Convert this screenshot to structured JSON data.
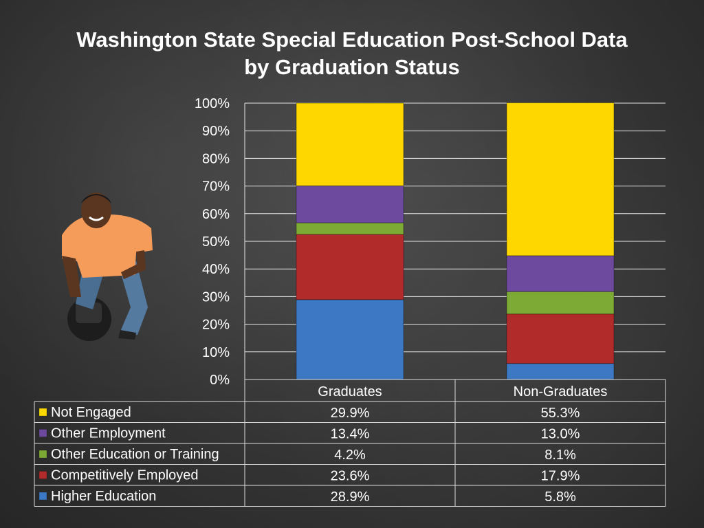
{
  "colors": {
    "Not Engaged": "#FFD700",
    "Other Employment": "#6E4A9E",
    "Other Education or Training": "#7DAA35",
    "Competitively Employed": "#B22B2B",
    "Higher Education": "#3C78C3",
    "gridline": "#e6e6e6",
    "table_border": "#dddddd"
  },
  "chart_data": {
    "type": "bar",
    "stacked": true,
    "title": "Washington State Special Education Post-School Data by Graduation Status",
    "title_lines": [
      "Washington State Special Education Post-School Data",
      "by Graduation Status"
    ],
    "categories": [
      "Graduates",
      "Non-Graduates"
    ],
    "series": [
      {
        "name": "Higher Education",
        "values": [
          28.9,
          5.8
        ],
        "labels": [
          "28.9%",
          "5.8%"
        ]
      },
      {
        "name": "Competitively Employed",
        "values": [
          23.6,
          17.9
        ],
        "labels": [
          "23.6%",
          "17.9%"
        ]
      },
      {
        "name": "Other Education or Training",
        "values": [
          4.2,
          8.1
        ],
        "labels": [
          "4.2%",
          "8.1%"
        ]
      },
      {
        "name": "Other Employment",
        "values": [
          13.4,
          13.0
        ],
        "labels": [
          "13.4%",
          "13.0%"
        ]
      },
      {
        "name": "Not Engaged",
        "values": [
          29.9,
          55.3
        ],
        "labels": [
          "29.9%",
          "55.3%"
        ]
      }
    ],
    "table_order": [
      "Not Engaged",
      "Other Employment",
      "Other Education or Training",
      "Competitively Employed",
      "Higher Education"
    ],
    "ylim": [
      0,
      100
    ],
    "yticks": [
      "0%",
      "10%",
      "20%",
      "30%",
      "40%",
      "50%",
      "60%",
      "70%",
      "80%",
      "90%",
      "100%"
    ],
    "grid": true,
    "legend": "data table below chart"
  }
}
